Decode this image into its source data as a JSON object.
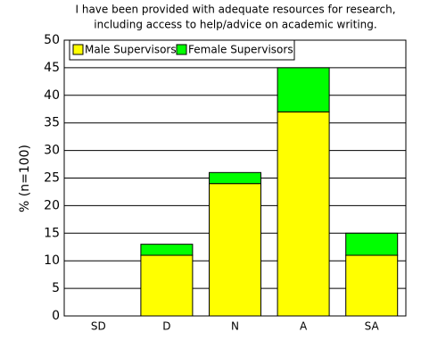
{
  "chart_data": {
    "type": "stacked-bar",
    "title": [
      "I have been provided with adequate resources for research,",
      "including access to help/advice on academic writing."
    ],
    "y_label": "% (n=100)",
    "categories": [
      "SD",
      "D",
      "N",
      "A",
      "SA"
    ],
    "series": [
      {
        "name": "Male Supervisors",
        "color": "#ffff00",
        "values": [
          0,
          11,
          24,
          37,
          11
        ]
      },
      {
        "name": "Female Supervisors",
        "color": "#00ff00",
        "values": [
          0,
          2,
          2,
          8,
          4
        ]
      }
    ],
    "ylim": [
      0,
      50
    ],
    "yticks": [
      0,
      5,
      10,
      15,
      20,
      25,
      30,
      35,
      40,
      45,
      50
    ],
    "grid": true,
    "legend": "top-left"
  }
}
